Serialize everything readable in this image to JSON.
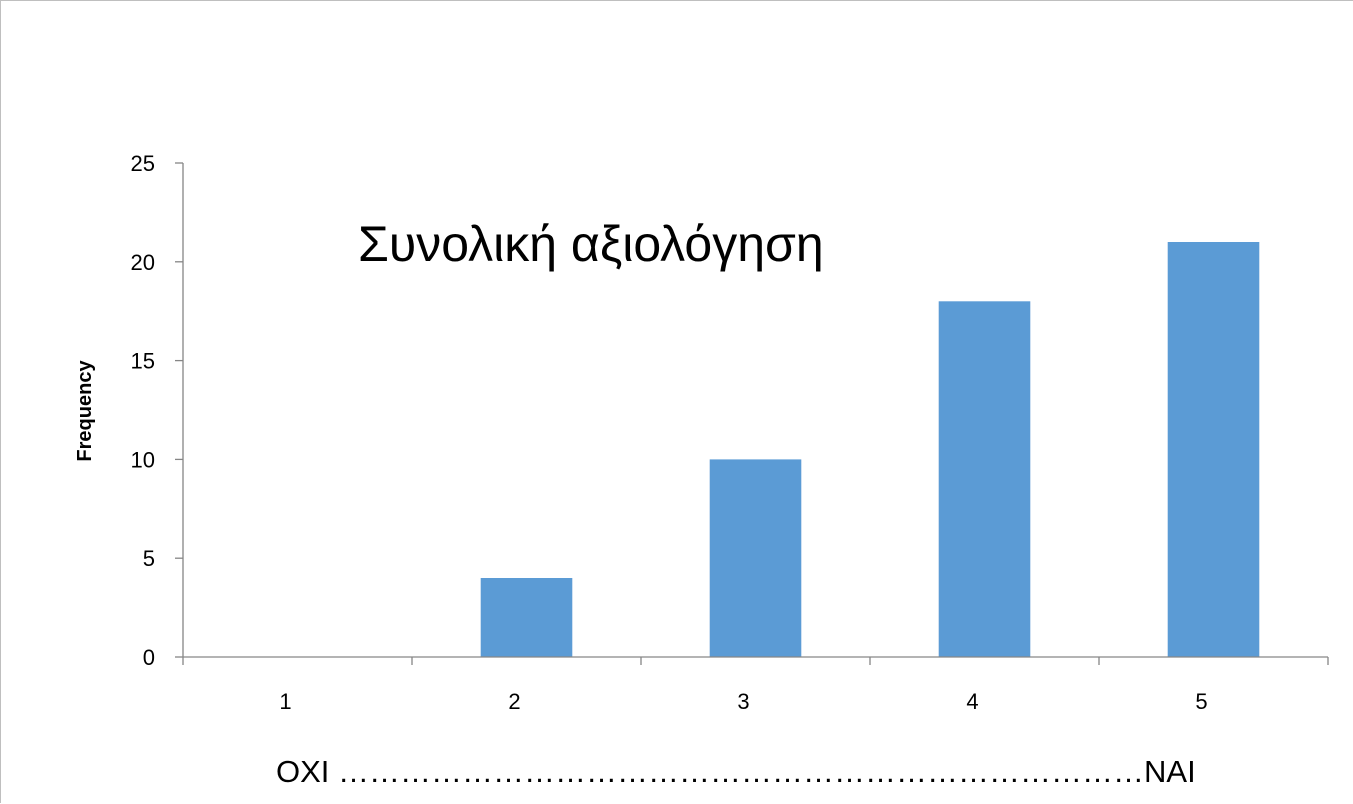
{
  "chart_data": {
    "type": "bar",
    "title": "Συνολική αξιολόγηση",
    "xlabel": "",
    "ylabel": "Frequency",
    "categories": [
      "1",
      "2",
      "3",
      "4",
      "5"
    ],
    "values": [
      0,
      4,
      10,
      18,
      21
    ],
    "ylim": [
      0,
      25
    ],
    "yticks": [
      "0",
      "5",
      "10",
      "15",
      "20",
      "25"
    ],
    "grid": false,
    "legend": "none",
    "bar_color": "#5b9bd5",
    "scale_annotation": "OXI ……………………………………………………………………NAI"
  }
}
